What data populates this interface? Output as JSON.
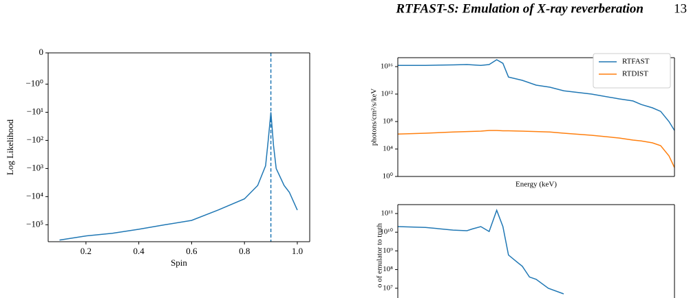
{
  "header": {
    "title": "RTFAST-S: Emulation of X-ray reverberation",
    "page": "13"
  },
  "chart_data": [
    {
      "type": "line",
      "xlabel": "Spin",
      "ylabel": "Log Likelihood",
      "yscale": "symlog",
      "linthresh": 1,
      "x": [
        0.1,
        0.2,
        0.3,
        0.4,
        0.5,
        0.6,
        0.7,
        0.8,
        0.85,
        0.88,
        0.89,
        0.9,
        0.91,
        0.92,
        0.95,
        0.97,
        1.0
      ],
      "series": [
        {
          "color": "#1f77b4",
          "values": [
            -350000,
            -250000,
            -200000,
            -145000,
            -100000,
            -70000,
            -30000,
            -12000,
            -4000,
            -800,
            -100,
            -10,
            -150,
            -1000,
            -4000,
            -7000,
            -30000
          ]
        }
      ],
      "vline": 0.9,
      "vline_style": "dashed",
      "xlim": [
        0.057,
        1.047
      ],
      "xticks": [
        0.2,
        0.4,
        0.6,
        0.8,
        {
          "value": 1,
          "label": "1.0"
        }
      ],
      "ylim": [
        -400000,
        0
      ],
      "yticks": [
        0,
        {
          "value": -1,
          "label": "−10⁰"
        },
        {
          "value": -10,
          "label": "−10¹"
        },
        {
          "value": -100,
          "label": "−10²"
        },
        {
          "value": -1000,
          "label": "−10³"
        },
        {
          "value": -10000,
          "label": "−10⁴"
        },
        {
          "value": -100000,
          "label": "−10⁵"
        }
      ]
    },
    {
      "type": "line",
      "xlabel": "Energy (keV)",
      "ylabel": "photons/cm²/s/keV",
      "xscale": "log",
      "yscale": "log",
      "legend": "upper right",
      "x": [
        0.1,
        0.251,
        0.631,
        1.0,
        1.585,
        2.09,
        2.69,
        3.31,
        3.98,
        6.31,
        10,
        15.8,
        25.1,
        63.1,
        158,
        251,
        331,
        479,
        631,
        832,
        1000
      ],
      "series": [
        {
          "name": "RTFAST",
          "color": "#1f77b4",
          "values": [
            1.5e+16,
            1.5e+16,
            1.8e+16,
            2e+16,
            1.5e+16,
            2e+16,
            1e+17,
            3e+16,
            300000000000000.0,
            100000000000000.0,
            20000000000000.0,
            10000000000000.0,
            3000000000000.0,
            1000000000000.0,
            200000000000.0,
            100000000000.0,
            30000000000.0,
            10000000000.0,
            3000000000.0,
            100000000.0,
            5000000.0
          ]
        },
        {
          "name": "RTDIST",
          "color": "#ff7f0e",
          "values": [
            1500000.0,
            2000000.0,
            3000000.0,
            3500000.0,
            4000000.0,
            5000000.0,
            5000000.0,
            4500000.0,
            4500000.0,
            4000000.0,
            3500000.0,
            3000000.0,
            2000000.0,
            1000000.0,
            400000.0,
            200000.0,
            150000.0,
            80000.0,
            30000.0,
            1000,
            20
          ]
        }
      ],
      "xlim": [
        0.1,
        1000
      ],
      "ylim": [
        1,
        2e+17
      ],
      "yticks": [
        {
          "value": 1,
          "label": "10⁰"
        },
        {
          "value": 10000,
          "label": "10⁴"
        },
        {
          "value": 100000000,
          "label": "10⁸"
        },
        {
          "value": 1000000000000.0,
          "label": "10¹²"
        },
        {
          "value": 1e+16,
          "label": "10¹⁶"
        }
      ]
    },
    {
      "type": "line",
      "ylabel": "o of emulator to truth",
      "xscale": "log",
      "yscale": "log",
      "x": [
        0.1,
        0.251,
        0.631,
        1.0,
        1.2,
        1.585,
        2.09,
        2.69,
        3.31,
        3.98,
        5,
        6.31,
        8,
        10,
        15,
        25
      ],
      "series": [
        {
          "color": "#1f77b4",
          "values": [
            20000000000.0,
            18000000000.0,
            13000000000.0,
            12000000000.0,
            15000000000.0,
            20000000000.0,
            11000000000.0,
            150000000000.0,
            20000000000.0,
            600000000.0,
            300000000.0,
            150000000.0,
            40000000.0,
            30000000.0,
            10000000.0,
            5000000.0
          ]
        }
      ],
      "xlim": [
        0.1,
        1000
      ],
      "ylim": [
        3000000,
        300000000000
      ],
      "yticks": [
        {
          "value": 10000000,
          "label": "10⁷"
        },
        {
          "value": 100000000,
          "label": "10⁸"
        },
        {
          "value": 1000000000,
          "label": "10⁹"
        },
        {
          "value": 10000000000,
          "label": "10¹⁰"
        },
        {
          "value": 100000000000,
          "label": "10¹¹"
        }
      ]
    }
  ]
}
